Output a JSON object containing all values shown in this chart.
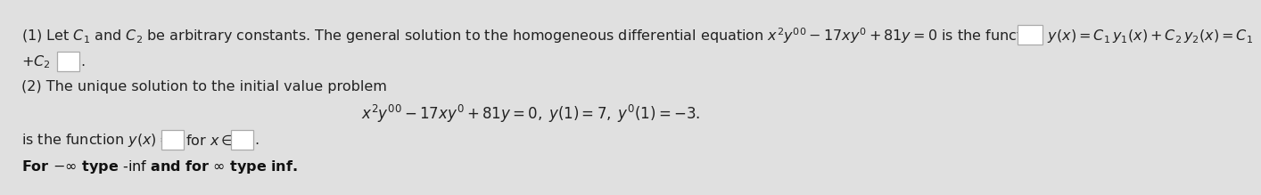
{
  "background_color": "#e0e0e0",
  "inner_bg_color": "#f0f0f0",
  "text_color": "#222222",
  "fontsize": 11.5,
  "line1": "(1) Let $C_1$ and $C_2$ be arbitrary constants. The general solution to the homogeneous differential equation $x^2y'' - 17xy' + 81y = 0$ is the function $y(x) = C_1\\,y_1(x) + C_2\\,y_2(x) = C_1$",
  "line2": "$+C_2$",
  "line3": "(2) The unique solution to the initial value problem",
  "line4": "$x^2y'' - 17xy' + 81y = 0, \\; y(1) = 7, \\; y'(1) = -3.$",
  "line5a": "is the function $y(x) =$",
  "line5b": "for $x \\in$",
  "line6": "For $-\\infty$ type -inf and for $\\infty$ type inf."
}
